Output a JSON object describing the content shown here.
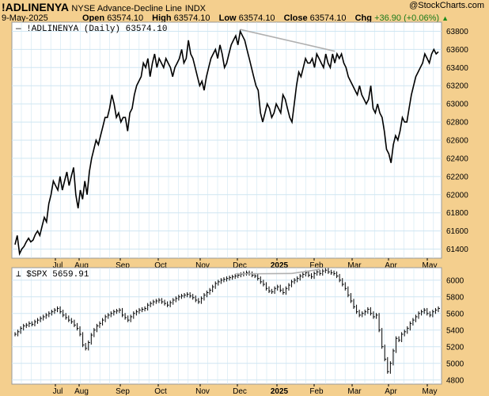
{
  "header": {
    "symbol": "!ADLINENYA",
    "description": "NYSE Advance-Decline Line",
    "exchange": "INDX",
    "date": "9-May-2025",
    "open_label": "Open",
    "open": "63574.10",
    "high_label": "High",
    "high": "63574.10",
    "low_label": "Low",
    "low": "63574.10",
    "close_label": "Close",
    "close": "63574.10",
    "chg_label": "Chg",
    "chg": "+36.90 (+0.06%)",
    "brand": "@StockCharts.com"
  },
  "colors": {
    "background": "#f4cf8e",
    "panel": "#ffffff",
    "grid": "#cfe6f2",
    "line": "#000000",
    "trendline": "#b0b0b0",
    "up": "#1a7a1a"
  },
  "chart_data": [
    {
      "type": "line",
      "legend": "!ADLINENYA (Daily) 63574.10",
      "x_ticks": [
        "Jul",
        "Aug",
        "Sep",
        "Oct",
        "Nov",
        "Dec",
        "2025",
        "Feb",
        "Mar",
        "Apr",
        "May"
      ],
      "y_ticks": [
        61400,
        61600,
        61800,
        62000,
        62200,
        62400,
        62600,
        62800,
        63000,
        63200,
        63400,
        63600,
        63800
      ],
      "ylim": [
        61300,
        63900
      ],
      "grid": true,
      "x_index_range": [
        0,
        220
      ],
      "x_tick_index": [
        18,
        43,
        69,
        93,
        117,
        142,
        166,
        190,
        214,
        234
      ],
      "x_label_index": [
        28,
        50,
        75,
        100,
        125,
        150,
        170,
        195,
        220,
        240,
        262
      ],
      "values": [
        61450,
        61550,
        61350,
        61400,
        61430,
        61480,
        61520,
        61480,
        61500,
        61560,
        61600,
        61550,
        61650,
        61750,
        61700,
        61900,
        62000,
        62150,
        62100,
        62050,
        62200,
        62050,
        62150,
        62250,
        62100,
        62200,
        62300,
        62000,
        61850,
        62050,
        61950,
        62150,
        62000,
        62250,
        62400,
        62500,
        62600,
        62550,
        62650,
        62750,
        62850,
        62850,
        62950,
        63100,
        63000,
        62850,
        62900,
        62800,
        62850,
        62850,
        62700,
        62900,
        62950,
        63100,
        63200,
        63250,
        63300,
        63450,
        63400,
        63500,
        63300,
        63450,
        63550,
        63400,
        63500,
        63450,
        63400,
        63500,
        63450,
        63400,
        63300,
        63400,
        63450,
        63500,
        63600,
        63450,
        63500,
        63700,
        63550,
        63500,
        63400,
        63300,
        63200,
        63250,
        63150,
        63300,
        63400,
        63500,
        63550,
        63600,
        63500,
        63650,
        63550,
        63400,
        63450,
        63550,
        63650,
        63700,
        63750,
        63650,
        63800,
        63750,
        63700,
        63600,
        63500,
        63400,
        63300,
        63200,
        63150,
        62900,
        62800,
        62900,
        63000,
        62950,
        62850,
        62900,
        63000,
        62950,
        62900,
        63100,
        63050,
        62950,
        62850,
        62800,
        63000,
        63200,
        63350,
        63300,
        63400,
        63500,
        63450,
        63450,
        63500,
        63400,
        63550,
        63500,
        63450,
        63400,
        63550,
        63450,
        63400,
        63550,
        63450,
        63550,
        63500,
        63550,
        63450,
        63400,
        63300,
        63250,
        63200,
        63150,
        63100,
        63200,
        63100,
        63050,
        63000,
        63050,
        63200,
        62950,
        62900,
        63000,
        62900,
        62850,
        62700,
        62500,
        62450,
        62350,
        62550,
        62650,
        62600,
        62700,
        62850,
        62800,
        62800,
        62950,
        63100,
        63200,
        63300,
        63350,
        63400,
        63450,
        63550,
        63500,
        63450,
        63550,
        63600,
        63550,
        63574
      ]
    },
    {
      "type": "ohlc",
      "legend": "$SPX 5659.91",
      "x_ticks": [
        "Jul",
        "Aug",
        "Sep",
        "Oct",
        "Nov",
        "Dec",
        "2025",
        "Feb",
        "Mar",
        "Apr",
        "May"
      ],
      "y_ticks": [
        4800,
        5000,
        5200,
        5400,
        5600,
        5800,
        6000
      ],
      "ylim": [
        4750,
        6150
      ],
      "grid": true,
      "x_index_range": [
        0,
        220
      ],
      "values": [
        5350,
        5380,
        5420,
        5450,
        5460,
        5480,
        5470,
        5500,
        5520,
        5540,
        5560,
        5580,
        5600,
        5620,
        5640,
        5660,
        5620,
        5580,
        5550,
        5520,
        5500,
        5460,
        5420,
        5350,
        5220,
        5180,
        5250,
        5340,
        5400,
        5450,
        5480,
        5520,
        5560,
        5580,
        5600,
        5620,
        5630,
        5640,
        5580,
        5550,
        5520,
        5560,
        5600,
        5620,
        5640,
        5650,
        5660,
        5700,
        5720,
        5740,
        5750,
        5760,
        5740,
        5720,
        5700,
        5730,
        5760,
        5780,
        5800,
        5810,
        5820,
        5830,
        5810,
        5790,
        5760,
        5740,
        5780,
        5820,
        5850,
        5880,
        5920,
        5960,
        5980,
        6000,
        6010,
        6020,
        6030,
        6040,
        6050,
        6060,
        6070,
        6080,
        6090,
        6080,
        6060,
        6050,
        6020,
        5980,
        5950,
        5900,
        5870,
        5860,
        5900,
        5920,
        5880,
        5850,
        5900,
        5940,
        5980,
        6000,
        6020,
        6050,
        6070,
        6090,
        6060,
        6040,
        6080,
        6100,
        6080,
        6110,
        6120,
        6100,
        6090,
        6080,
        6050,
        6000,
        5950,
        5900,
        5820,
        5750,
        5680,
        5620,
        5580,
        5600,
        5620,
        5650,
        5600,
        5560,
        5580,
        5400,
        5200,
        5050,
        4900,
        5000,
        5150,
        5300,
        5280,
        5350,
        5380,
        5420,
        5480,
        5520,
        5560,
        5600,
        5620,
        5640,
        5600,
        5580,
        5620,
        5640,
        5660
      ]
    }
  ]
}
